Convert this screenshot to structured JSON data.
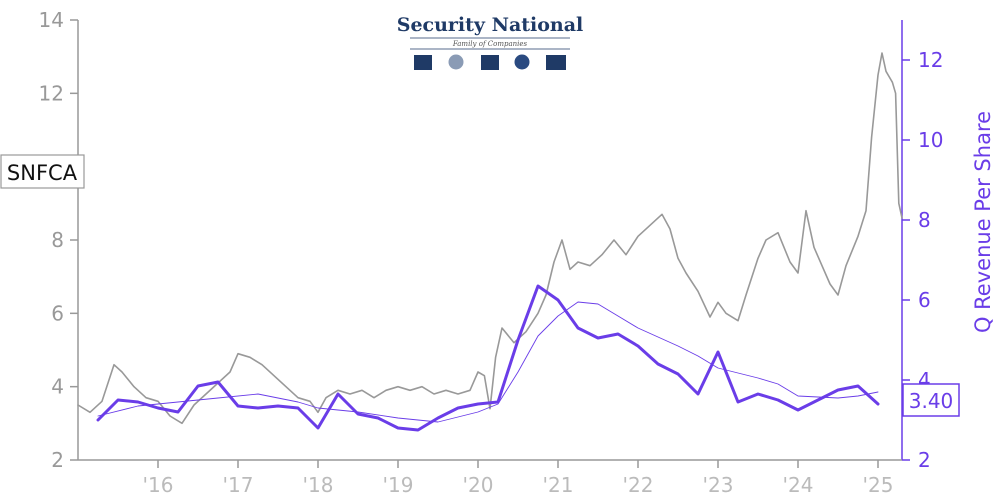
{
  "logo": {
    "title": "Security National",
    "subtitle": "Family of Companies"
  },
  "chart_data": {
    "type": "line",
    "ticker_label": "SNFCA",
    "last_value_label": "3.40",
    "colors": {
      "price": "#999999",
      "revenue": "#6a3de8",
      "left_axis": "#999999",
      "right_axis": "#6a3de8",
      "x_ticks": "#bbbbbb"
    },
    "xlim": [
      2015.0,
      2025.3
    ],
    "x_ticks": [
      {
        "x": 2016.0,
        "label": "'16"
      },
      {
        "x": 2017.0,
        "label": "'17"
      },
      {
        "x": 2018.0,
        "label": "'18"
      },
      {
        "x": 2019.0,
        "label": "'19"
      },
      {
        "x": 2020.0,
        "label": "'20"
      },
      {
        "x": 2021.0,
        "label": "'21"
      },
      {
        "x": 2022.0,
        "label": "'22"
      },
      {
        "x": 2023.0,
        "label": "'23"
      },
      {
        "x": 2024.0,
        "label": "'24"
      },
      {
        "x": 2025.0,
        "label": "'25"
      }
    ],
    "y_left": {
      "ylim": [
        2,
        14
      ],
      "ticks": [
        2,
        4,
        6,
        8,
        12,
        14
      ],
      "ylabel": ""
    },
    "y_right": {
      "ylim": [
        2,
        13
      ],
      "ticks": [
        2,
        4,
        6,
        8,
        10,
        12
      ],
      "ylabel": "Q Revenue Per Share"
    },
    "series": [
      {
        "axis": "left",
        "style": "price",
        "x": [
          2015.0,
          2015.15,
          2015.3,
          2015.45,
          2015.55,
          2015.7,
          2015.85,
          2016.0,
          2016.15,
          2016.3,
          2016.45,
          2016.6,
          2016.75,
          2016.9,
          2017.0,
          2017.15,
          2017.3,
          2017.45,
          2017.6,
          2017.75,
          2017.9,
          2018.0,
          2018.1,
          2018.25,
          2018.4,
          2018.55,
          2018.7,
          2018.85,
          2019.0,
          2019.15,
          2019.3,
          2019.45,
          2019.6,
          2019.75,
          2019.9,
          2020.0,
          2020.08,
          2020.15,
          2020.22,
          2020.3,
          2020.45,
          2020.6,
          2020.75,
          2020.85,
          2020.95,
          2021.05,
          2021.15,
          2021.25,
          2021.4,
          2021.55,
          2021.7,
          2021.85,
          2022.0,
          2022.15,
          2022.3,
          2022.4,
          2022.5,
          2022.6,
          2022.75,
          2022.9,
          2023.0,
          2023.1,
          2023.25,
          2023.35,
          2023.5,
          2023.6,
          2023.75,
          2023.9,
          2024.0,
          2024.1,
          2024.2,
          2024.3,
          2024.4,
          2024.5,
          2024.6,
          2024.75,
          2024.85,
          2024.92,
          2025.0,
          2025.05,
          2025.1,
          2025.18,
          2025.22,
          2025.26,
          2025.3
        ],
        "values": [
          3.5,
          3.3,
          3.6,
          4.6,
          4.4,
          4.0,
          3.7,
          3.6,
          3.2,
          3.0,
          3.5,
          3.8,
          4.1,
          4.4,
          4.9,
          4.8,
          4.6,
          4.3,
          4.0,
          3.7,
          3.6,
          3.3,
          3.7,
          3.9,
          3.8,
          3.9,
          3.7,
          3.9,
          4.0,
          3.9,
          4.0,
          3.8,
          3.9,
          3.8,
          3.9,
          4.4,
          4.3,
          3.4,
          4.8,
          5.6,
          5.2,
          5.5,
          6.0,
          6.5,
          7.4,
          8.0,
          7.2,
          7.4,
          7.3,
          7.6,
          8.0,
          7.6,
          8.1,
          8.4,
          8.7,
          8.3,
          7.5,
          7.1,
          6.6,
          5.9,
          6.3,
          6.0,
          5.8,
          6.5,
          7.5,
          8.0,
          8.2,
          7.4,
          7.1,
          8.8,
          7.8,
          7.3,
          6.8,
          6.5,
          7.3,
          8.1,
          8.8,
          10.8,
          12.5,
          13.1,
          12.6,
          12.3,
          12.0,
          9.0,
          8.6
        ]
      },
      {
        "axis": "right",
        "style": "revenue",
        "x": [
          2015.25,
          2015.5,
          2015.75,
          2016.0,
          2016.25,
          2016.5,
          2016.75,
          2017.0,
          2017.25,
          2017.5,
          2017.75,
          2018.0,
          2018.25,
          2018.5,
          2018.75,
          2019.0,
          2019.25,
          2019.5,
          2019.75,
          2020.0,
          2020.25,
          2020.5,
          2020.75,
          2021.0,
          2021.25,
          2021.5,
          2021.75,
          2022.0,
          2022.25,
          2022.5,
          2022.75,
          2023.0,
          2023.25,
          2023.5,
          2023.75,
          2024.0,
          2024.25,
          2024.5,
          2024.75,
          2025.0
        ],
        "values": [
          3.0,
          3.5,
          3.45,
          3.3,
          3.2,
          3.85,
          3.95,
          3.35,
          3.3,
          3.35,
          3.3,
          2.8,
          3.65,
          3.15,
          3.05,
          2.8,
          2.75,
          3.05,
          3.3,
          3.4,
          3.45,
          5.0,
          6.35,
          6.0,
          5.3,
          5.05,
          5.15,
          4.85,
          4.4,
          4.15,
          3.65,
          4.7,
          3.45,
          3.65,
          3.5,
          3.25,
          3.5,
          3.75,
          3.85,
          3.4
        ]
      },
      {
        "axis": "right",
        "style": "revenue-thin",
        "x": [
          2015.25,
          2015.75,
          2016.25,
          2016.75,
          2017.25,
          2017.75,
          2018.0,
          2018.5,
          2019.0,
          2019.5,
          2020.0,
          2020.25,
          2020.5,
          2020.75,
          2021.0,
          2021.25,
          2021.5,
          2021.75,
          2022.0,
          2022.5,
          2022.75,
          2023.0,
          2023.5,
          2023.75,
          2024.0,
          2024.5,
          2024.75,
          2025.0
        ],
        "values": [
          3.1,
          3.35,
          3.45,
          3.55,
          3.65,
          3.45,
          3.3,
          3.2,
          3.05,
          2.95,
          3.2,
          3.4,
          4.2,
          5.1,
          5.6,
          5.95,
          5.9,
          5.6,
          5.3,
          4.85,
          4.6,
          4.3,
          4.05,
          3.9,
          3.6,
          3.55,
          3.6,
          3.7
        ]
      }
    ]
  }
}
